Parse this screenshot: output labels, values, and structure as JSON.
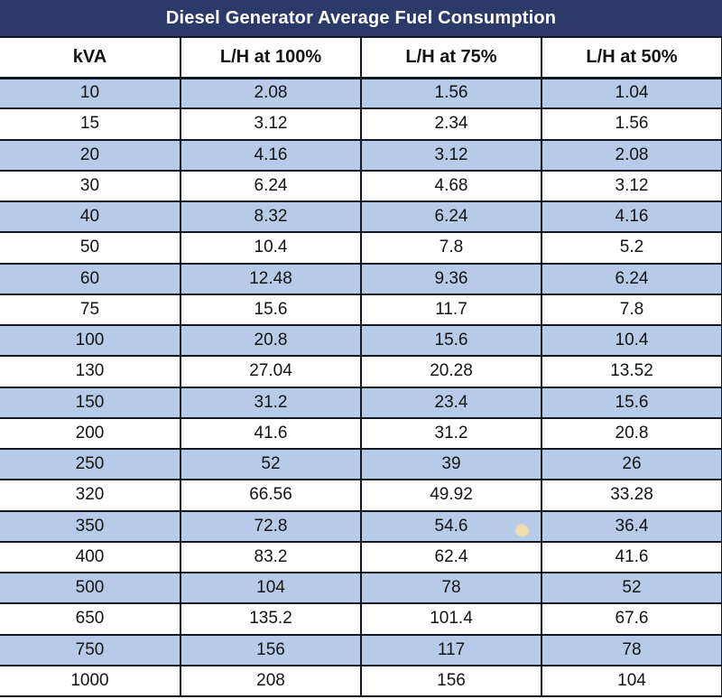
{
  "title": "Diesel Generator Average Fuel Consumption",
  "colors": {
    "title_bar_background": "#2c3a69",
    "title_text": "#ffffff",
    "striped_row_background": "#b7cbe9",
    "grid_border": "#131722",
    "cell_text": "#141414"
  },
  "table": {
    "headers": [
      "kVA",
      "L/H at 100%",
      "L/H at 75%",
      "L/H at 50%"
    ],
    "rows": [
      [
        "10",
        "2.08",
        "1.56",
        "1.04"
      ],
      [
        "15",
        "3.12",
        "2.34",
        "1.56"
      ],
      [
        "20",
        "4.16",
        "3.12",
        "2.08"
      ],
      [
        "30",
        "6.24",
        "4.68",
        "3.12"
      ],
      [
        "40",
        "8.32",
        "6.24",
        "4.16"
      ],
      [
        "50",
        "10.4",
        "7.8",
        "5.2"
      ],
      [
        "60",
        "12.48",
        "9.36",
        "6.24"
      ],
      [
        "75",
        "15.6",
        "11.7",
        "7.8"
      ],
      [
        "100",
        "20.8",
        "15.6",
        "10.4"
      ],
      [
        "130",
        "27.04",
        "20.28",
        "13.52"
      ],
      [
        "150",
        "31.2",
        "23.4",
        "15.6"
      ],
      [
        "200",
        "41.6",
        "31.2",
        "20.8"
      ],
      [
        "250",
        "52",
        "39",
        "26"
      ],
      [
        "320",
        "66.56",
        "49.92",
        "33.28"
      ],
      [
        "350",
        "72.8",
        "54.6",
        "36.4"
      ],
      [
        "400",
        "83.2",
        "62.4",
        "41.6"
      ],
      [
        "500",
        "104",
        "78",
        "52"
      ],
      [
        "650",
        "135.2",
        "101.4",
        "67.6"
      ],
      [
        "750",
        "156",
        "117",
        "78"
      ],
      [
        "1000",
        "208",
        "156",
        "104"
      ]
    ]
  },
  "chart_data": {
    "type": "table",
    "title": "Diesel Generator Average Fuel Consumption",
    "columns": [
      "kVA",
      "L/H at 100%",
      "L/H at 75%",
      "L/H at 50%"
    ],
    "rows": [
      [
        10,
        2.08,
        1.56,
        1.04
      ],
      [
        15,
        3.12,
        2.34,
        1.56
      ],
      [
        20,
        4.16,
        3.12,
        2.08
      ],
      [
        30,
        6.24,
        4.68,
        3.12
      ],
      [
        40,
        8.32,
        6.24,
        4.16
      ],
      [
        50,
        10.4,
        7.8,
        5.2
      ],
      [
        60,
        12.48,
        9.36,
        6.24
      ],
      [
        75,
        15.6,
        11.7,
        7.8
      ],
      [
        100,
        20.8,
        15.6,
        10.4
      ],
      [
        130,
        27.04,
        20.28,
        13.52
      ],
      [
        150,
        31.2,
        23.4,
        15.6
      ],
      [
        200,
        41.6,
        31.2,
        20.8
      ],
      [
        250,
        52,
        39,
        26
      ],
      [
        320,
        66.56,
        49.92,
        33.28
      ],
      [
        350,
        72.8,
        54.6,
        36.4
      ],
      [
        400,
        83.2,
        62.4,
        41.6
      ],
      [
        500,
        104,
        78,
        52
      ],
      [
        650,
        135.2,
        101.4,
        67.6
      ],
      [
        750,
        156,
        117,
        78
      ],
      [
        1000,
        208,
        156,
        104
      ]
    ],
    "layout_hints": {
      "stripe_pattern": "alternating rows starting blue at first data row",
      "columns_equal_width": true,
      "last_row_clipped_at_bottom": true
    }
  }
}
